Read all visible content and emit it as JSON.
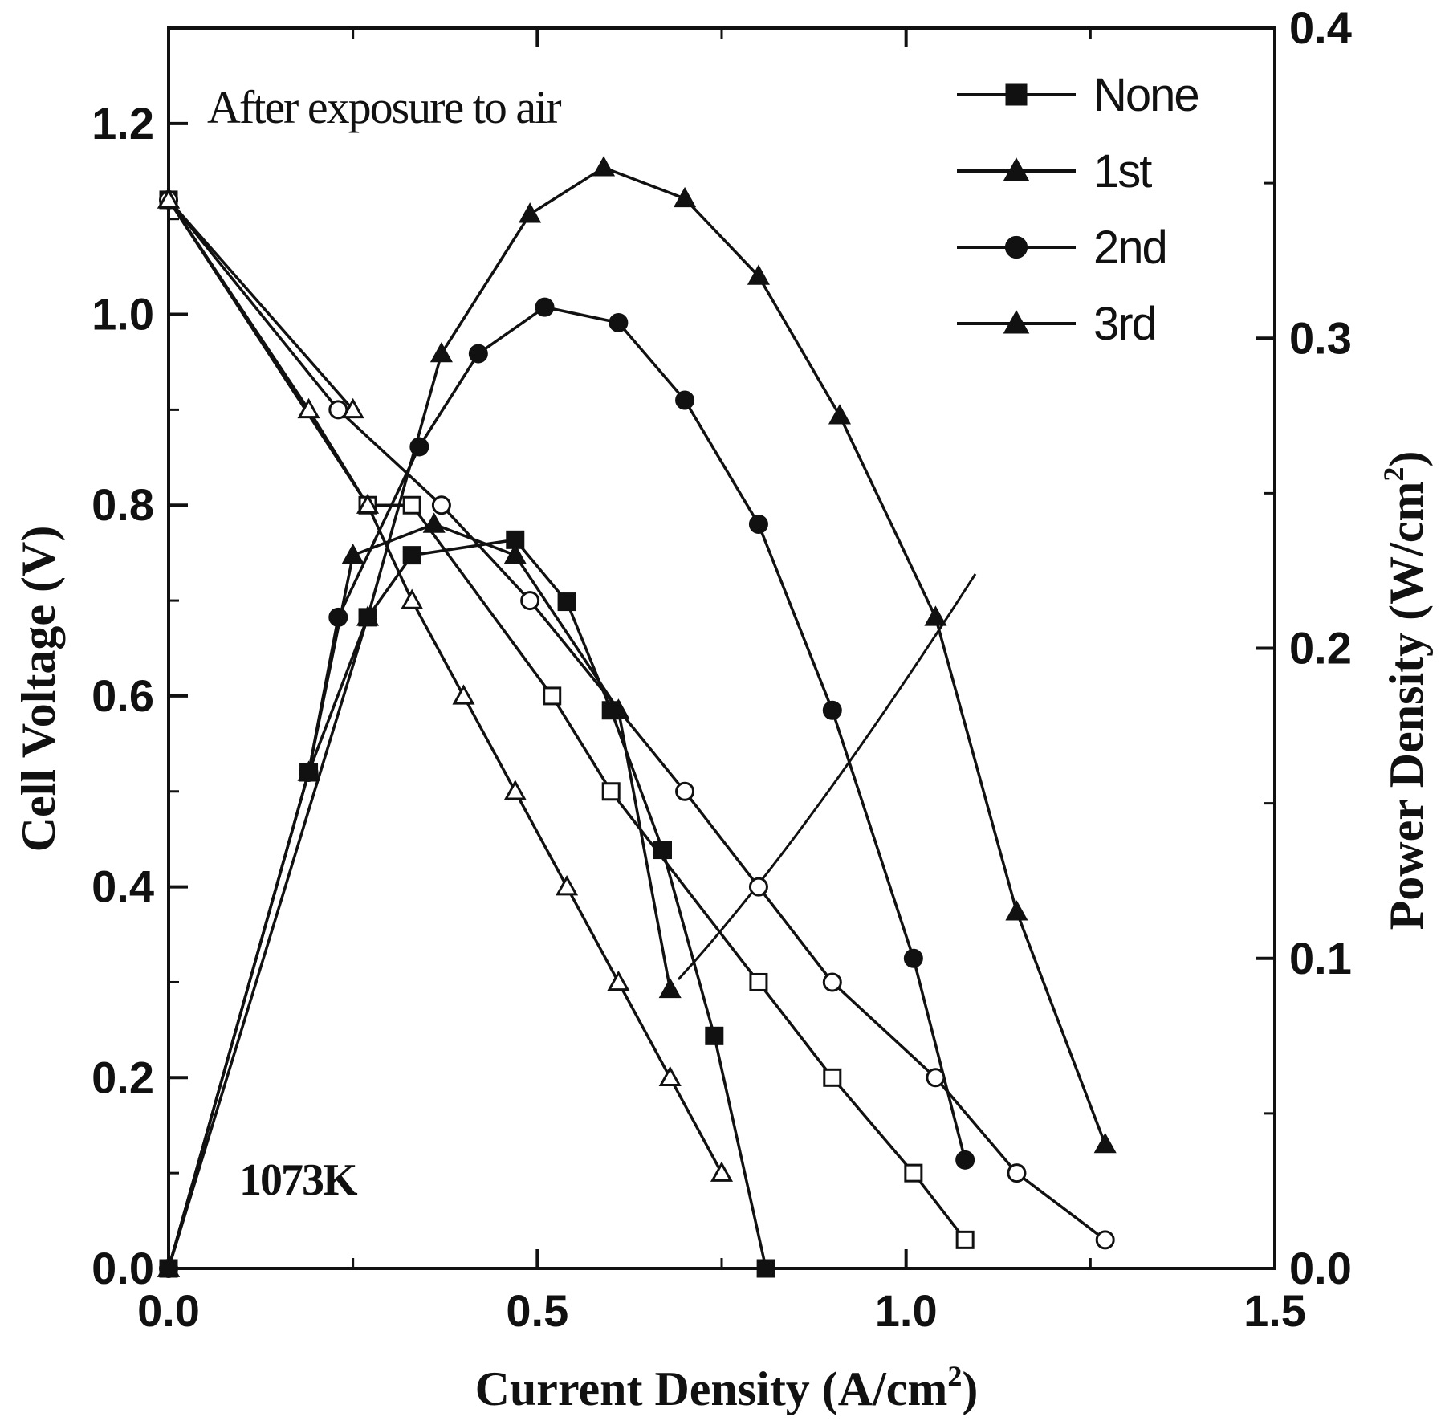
{
  "chart_data": {
    "type": "line",
    "xlabel": "Current Density (A/cm",
    "xlabel_sup": "2",
    "xlabel_close": ")",
    "ylabel": "Cell Voltage (V)",
    "y2label": "Power Density (W/cm",
    "y2label_sup": "2",
    "y2label_close": ")",
    "xlim": [
      0,
      1.5
    ],
    "ylim": [
      0,
      1.3
    ],
    "y2lim": [
      0,
      0.4
    ],
    "x_ticks": [
      "0.0",
      "0.5",
      "1.0",
      "1.5"
    ],
    "y_ticks": [
      "0.0",
      "0.2",
      "0.4",
      "0.6",
      "0.8",
      "1.0",
      "1.2"
    ],
    "y2_ticks": [
      "0.0",
      "0.1",
      "0.2",
      "0.3",
      "0.4"
    ],
    "annotations": [
      "After exposure to air",
      "1073K"
    ],
    "legend_position": "top-right",
    "series": [
      {
        "name": "None",
        "marker": "square",
        "voltage": {
          "x": [
            0.0,
            0.27,
            0.33,
            0.52,
            0.6,
            0.8,
            0.9,
            1.01,
            1.08
          ],
          "y": [
            1.12,
            0.8,
            0.8,
            0.6,
            0.5,
            0.3,
            0.2,
            0.1,
            0.03
          ]
        },
        "power": {
          "x": [
            0.0,
            0.19,
            0.27,
            0.33,
            0.47,
            0.54,
            0.6,
            0.67,
            0.74,
            0.81
          ],
          "y": [
            0.0,
            0.16,
            0.21,
            0.23,
            0.235,
            0.215,
            0.18,
            0.135,
            0.075,
            0.0
          ]
        }
      },
      {
        "name": "1st",
        "marker": "triangle",
        "voltage": {
          "x": [
            0.0,
            0.19,
            0.27,
            0.33,
            0.4,
            0.47,
            0.54,
            0.61,
            0.68,
            0.75
          ],
          "y": [
            1.12,
            0.9,
            0.8,
            0.7,
            0.6,
            0.5,
            0.4,
            0.3,
            0.2,
            0.1
          ]
        },
        "power": {
          "x": [
            0.0,
            0.19,
            0.25,
            0.36,
            0.47,
            0.61,
            0.68
          ],
          "y": [
            0.0,
            0.16,
            0.23,
            0.24,
            0.23,
            0.18,
            0.09
          ]
        }
      },
      {
        "name": "2nd",
        "marker": "circle",
        "voltage": {
          "x": [
            0.0,
            0.23,
            0.37,
            0.49,
            0.7,
            0.8,
            0.9,
            1.04,
            1.15,
            1.27
          ],
          "y": [
            1.12,
            0.9,
            0.8,
            0.7,
            0.5,
            0.4,
            0.3,
            0.2,
            0.1,
            0.03
          ]
        },
        "power": {
          "x": [
            0.0,
            0.19,
            0.23,
            0.34,
            0.42,
            0.51,
            0.61,
            0.7,
            0.8,
            0.9,
            1.01,
            1.08
          ],
          "y": [
            0.0,
            0.16,
            0.21,
            0.265,
            0.295,
            0.31,
            0.305,
            0.28,
            0.24,
            0.18,
            0.1,
            0.035
          ]
        }
      },
      {
        "name": "3rd",
        "marker": "triangle",
        "voltage": {
          "x": [
            0.0,
            0.25
          ],
          "y": [
            1.12,
            0.9
          ]
        },
        "power": {
          "x": [
            0.0,
            0.27,
            0.37,
            0.49,
            0.59,
            0.7,
            0.8,
            0.91,
            1.04,
            1.15,
            1.27
          ],
          "y": [
            0.0,
            0.21,
            0.295,
            0.34,
            0.355,
            0.345,
            0.32,
            0.275,
            0.21,
            0.115,
            0.04
          ]
        }
      }
    ]
  }
}
